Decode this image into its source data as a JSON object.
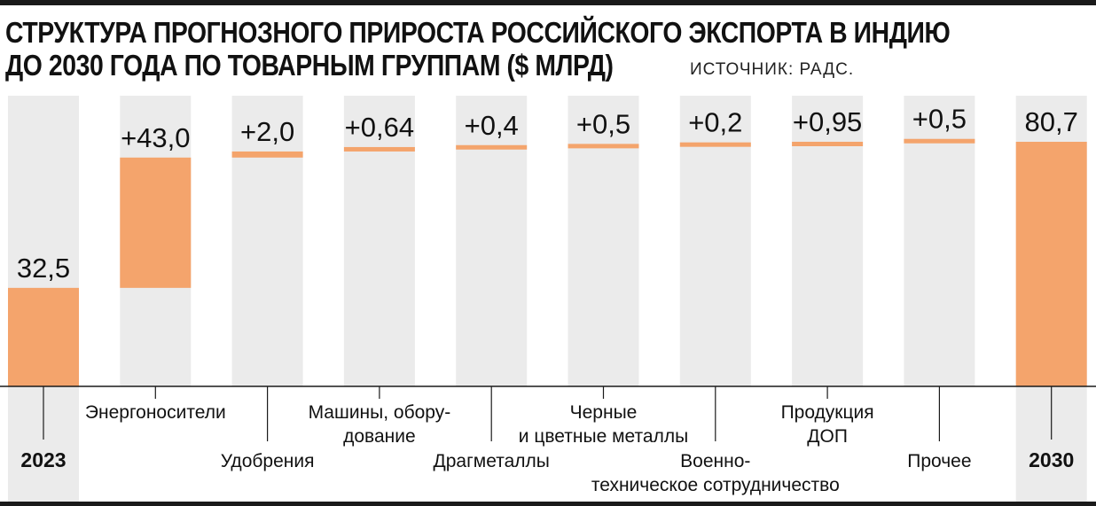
{
  "title": {
    "line1": "СТРУКТУРА ПРОГНОЗНОГО ПРИРОСТА РОССИЙСКОГО ЭКСПОРТА В ИНДИЮ",
    "line2": "ДО 2030 ГОДА ПО ТОВАРНЫМ ГРУППАМ ($ МЛРД)"
  },
  "source": "ИСТОЧНИК: РАДС.",
  "colors": {
    "bar": "#f4a46c",
    "column_bg": "#ebebeb",
    "text": "#111111",
    "rule": "#1a1a1a"
  },
  "chart_data": {
    "type": "bar",
    "subtype": "waterfall",
    "categories": [
      "2023",
      "Энергоносители",
      "Удобрения",
      "Машины, оборудование",
      "Драгметаллы",
      "Черные и цветные металлы",
      "Военно-техническое сотрудничество",
      "Продукция ДОП",
      "Прочее",
      "2030"
    ],
    "values": [
      32.5,
      43.0,
      2.0,
      0.64,
      0.4,
      0.5,
      0.2,
      0.95,
      0.5,
      80.7
    ],
    "kinds": [
      "total",
      "increase",
      "increase",
      "increase",
      "increase",
      "increase",
      "increase",
      "increase",
      "increase",
      "total"
    ],
    "value_labels": [
      "32,5",
      "+43,0",
      "+2,0",
      "+0,64",
      "+0,4",
      "+0,5",
      "+0,2",
      "+0,95",
      "+0,5",
      "80,7"
    ],
    "tick_labels": [
      [
        "2023"
      ],
      [
        "Энергоносители"
      ],
      [
        "Удобрения"
      ],
      [
        "Машины, обору-",
        "дование"
      ],
      [
        "Драгметаллы"
      ],
      [
        "Черные",
        "и цветные металлы"
      ],
      [
        "Военно-",
        "техническое сотрудничество"
      ],
      [
        "Продукция",
        "ДОП"
      ],
      [
        "Прочее"
      ],
      [
        "2030"
      ]
    ],
    "bold_ticks": [
      true,
      false,
      false,
      false,
      false,
      false,
      false,
      false,
      false,
      true
    ],
    "ylim": [
      0,
      87
    ],
    "grid": false,
    "legend": "none"
  }
}
